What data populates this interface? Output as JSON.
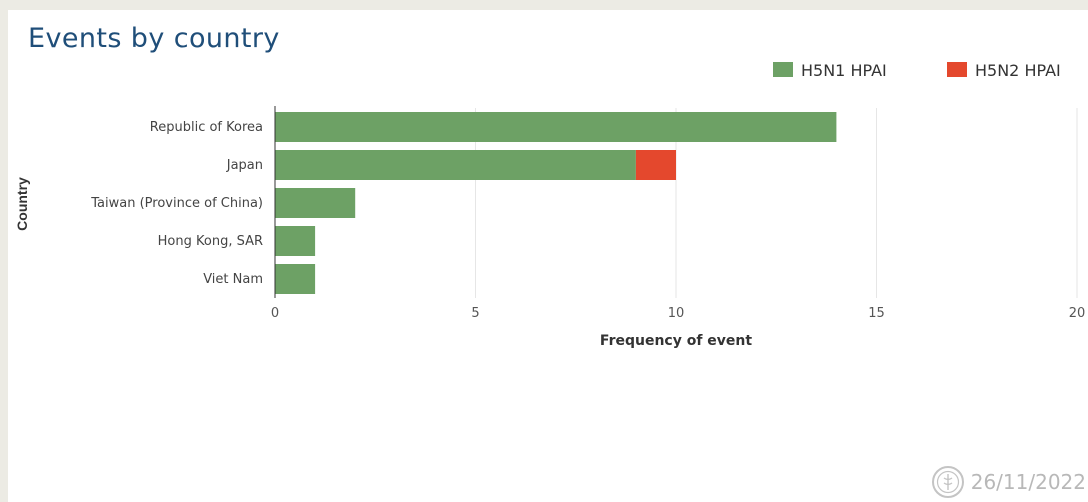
{
  "chart_data": {
    "type": "bar",
    "orientation": "horizontal",
    "stacked": true,
    "title": "Events by country",
    "xlabel": "Frequency of event",
    "ylabel": "Country",
    "categories": [
      "Republic of Korea",
      "Japan",
      "Taiwan (Province of China)",
      "Hong Kong, SAR",
      "Viet Nam"
    ],
    "series": [
      {
        "name": "H5N1 HPAI",
        "color": "#6da165",
        "values": [
          14,
          9,
          2,
          1,
          1
        ]
      },
      {
        "name": "H5N2 HPAI",
        "color": "#e4482d",
        "values": [
          0,
          1,
          0,
          0,
          0
        ]
      }
    ],
    "xlim": [
      0,
      20
    ],
    "xticks": [
      0,
      5,
      10,
      15,
      20
    ],
    "grid": true,
    "legend_position": "top-right"
  },
  "footer": {
    "date": "26/11/2022"
  }
}
